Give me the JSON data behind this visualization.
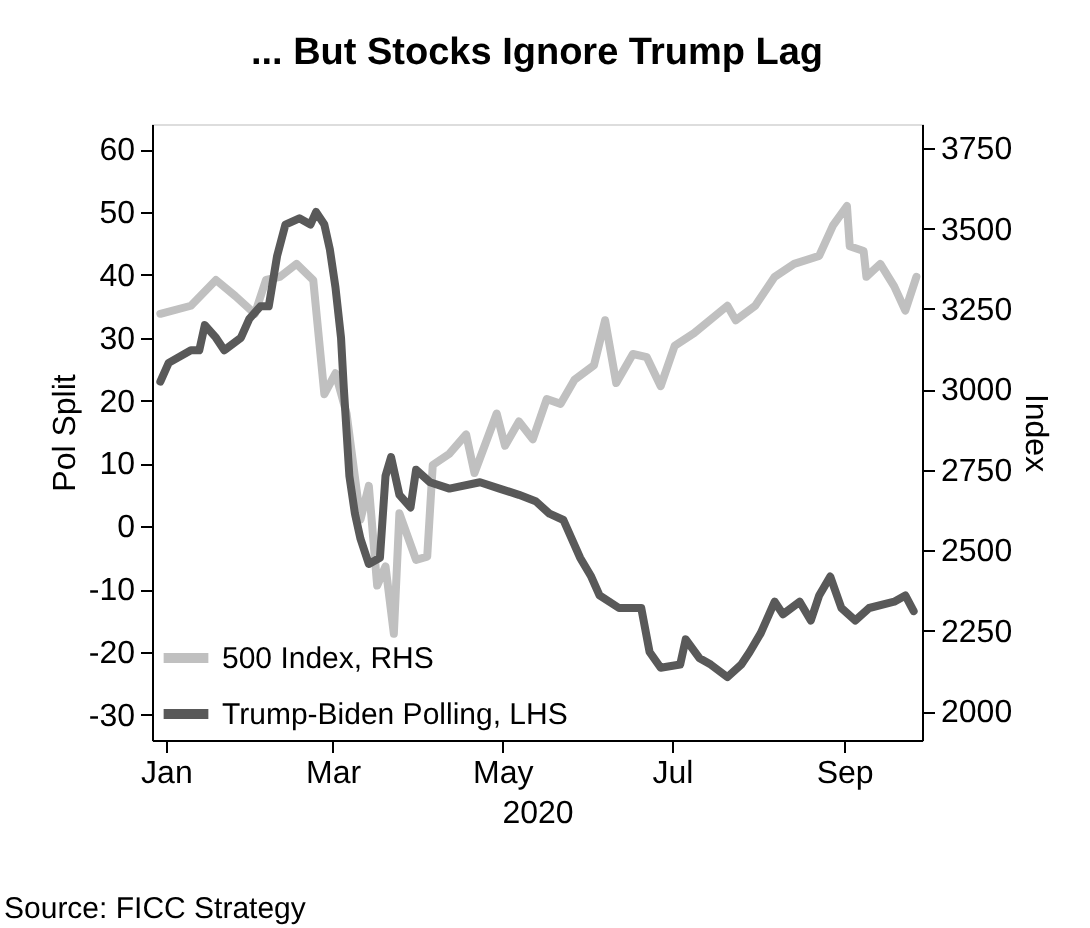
{
  "chart_data": {
    "type": "line",
    "title": "... But Stocks Ignore Trump Lag",
    "xlabel": "2020",
    "ylabel": "Pol Split",
    "y2label": "Index",
    "annotations": [
      "Source: FICC Strategy"
    ],
    "xlim": [
      "2019-12-27",
      "2020-09-29"
    ],
    "xticks": [
      {
        "value": "2020-01-01",
        "label": "Jan"
      },
      {
        "value": "2020-03-01",
        "label": "Mar"
      },
      {
        "value": "2020-05-01",
        "label": "May"
      },
      {
        "value": "2020-07-01",
        "label": "Jul"
      },
      {
        "value": "2020-09-01",
        "label": "Sep"
      }
    ],
    "ylim": [
      -34,
      64
    ],
    "yticks": [
      -30,
      -20,
      -10,
      0,
      10,
      20,
      30,
      40,
      50,
      60
    ],
    "y2lim": [
      1910,
      3825
    ],
    "y2ticks": [
      2000,
      2250,
      2500,
      2750,
      3000,
      3250,
      3500,
      3750
    ],
    "grid": false,
    "legend": "bottom left",
    "marker": "none",
    "line_style": "solid",
    "series": [
      {
        "name": "500 Index, RHS",
        "color": "#c0c0c0",
        "axis": "y2",
        "x": [
          "2019-12-30",
          "2020-01-10",
          "2020-01-19",
          "2020-01-26",
          "2020-02-02",
          "2020-02-06",
          "2020-02-11",
          "2020-02-17",
          "2020-02-23",
          "2020-02-27",
          "2020-03-02",
          "2020-03-06",
          "2020-03-11",
          "2020-03-14",
          "2020-03-17",
          "2020-03-20",
          "2020-03-23",
          "2020-03-25",
          "2020-03-31",
          "2020-04-04",
          "2020-04-06",
          "2020-04-12",
          "2020-04-18",
          "2020-04-21",
          "2020-04-29",
          "2020-05-02",
          "2020-05-07",
          "2020-05-12",
          "2020-05-17",
          "2020-05-22",
          "2020-05-27",
          "2020-06-03",
          "2020-06-07",
          "2020-06-11",
          "2020-06-17",
          "2020-06-22",
          "2020-06-27",
          "2020-07-02",
          "2020-07-09",
          "2020-07-21",
          "2020-07-24",
          "2020-07-31",
          "2020-08-07",
          "2020-08-14",
          "2020-08-23",
          "2020-08-28",
          "2020-09-02",
          "2020-09-03",
          "2020-09-08",
          "2020-09-09",
          "2020-09-14",
          "2020-09-19",
          "2020-09-23",
          "2020-09-27"
        ],
        "values": [
          3235,
          3260,
          3340,
          3290,
          3235,
          3340,
          3350,
          3390,
          3340,
          2985,
          3050,
          2925,
          2595,
          2700,
          2390,
          2450,
          2240,
          2615,
          2470,
          2480,
          2765,
          2800,
          2860,
          2740,
          2925,
          2825,
          2900,
          2845,
          2970,
          2955,
          3030,
          3075,
          3215,
          3020,
          3110,
          3100,
          3010,
          3135,
          3175,
          3260,
          3215,
          3260,
          3350,
          3390,
          3415,
          3510,
          3570,
          3445,
          3430,
          3350,
          3390,
          3320,
          3245,
          3350
        ]
      },
      {
        "name": "Trump-Biden Polling, LHS",
        "color": "#595959",
        "x": [
          "2019-12-30",
          "2020-01-02",
          "2020-01-10",
          "2020-01-13",
          "2020-01-15",
          "2020-01-19",
          "2020-01-22",
          "2020-01-28",
          "2020-01-31",
          "2020-02-04",
          "2020-02-07",
          "2020-02-10",
          "2020-02-13",
          "2020-02-18",
          "2020-02-22",
          "2020-02-24",
          "2020-02-27",
          "2020-02-29",
          "2020-03-02",
          "2020-03-04",
          "2020-03-05",
          "2020-03-07",
          "2020-03-09",
          "2020-03-11",
          "2020-03-14",
          "2020-03-18",
          "2020-03-20",
          "2020-03-22",
          "2020-03-25",
          "2020-03-29",
          "2020-03-31",
          "2020-04-05",
          "2020-04-12",
          "2020-04-23",
          "2020-04-30",
          "2020-05-07",
          "2020-05-13",
          "2020-05-18",
          "2020-05-23",
          "2020-05-29",
          "2020-06-02",
          "2020-06-05",
          "2020-06-12",
          "2020-06-20",
          "2020-06-23",
          "2020-06-27",
          "2020-07-04",
          "2020-07-06",
          "2020-07-11",
          "2020-07-15",
          "2020-07-21",
          "2020-07-26",
          "2020-07-29",
          "2020-08-02",
          "2020-08-07",
          "2020-08-10",
          "2020-08-16",
          "2020-08-20",
          "2020-08-23",
          "2020-08-27",
          "2020-08-31",
          "2020-09-05",
          "2020-09-10",
          "2020-09-19",
          "2020-09-23",
          "2020-09-26"
        ],
        "values": [
          23,
          26,
          28,
          28,
          32,
          30,
          28,
          30,
          33,
          35,
          35,
          43,
          48,
          49,
          48,
          50,
          48,
          44,
          38,
          30,
          22,
          8,
          2,
          -2,
          -6,
          -5,
          8,
          11,
          5,
          3,
          9,
          7,
          6,
          7,
          6,
          5,
          4,
          2,
          1,
          -5,
          -8,
          -11,
          -13,
          -13,
          -20,
          -22.5,
          -22,
          -18,
          -21,
          -22,
          -24,
          -22,
          -20,
          -17,
          -12,
          -14,
          -12,
          -15,
          -11,
          -8,
          -13,
          -15,
          -13,
          -12,
          -11,
          -13.5
        ]
      }
    ]
  }
}
